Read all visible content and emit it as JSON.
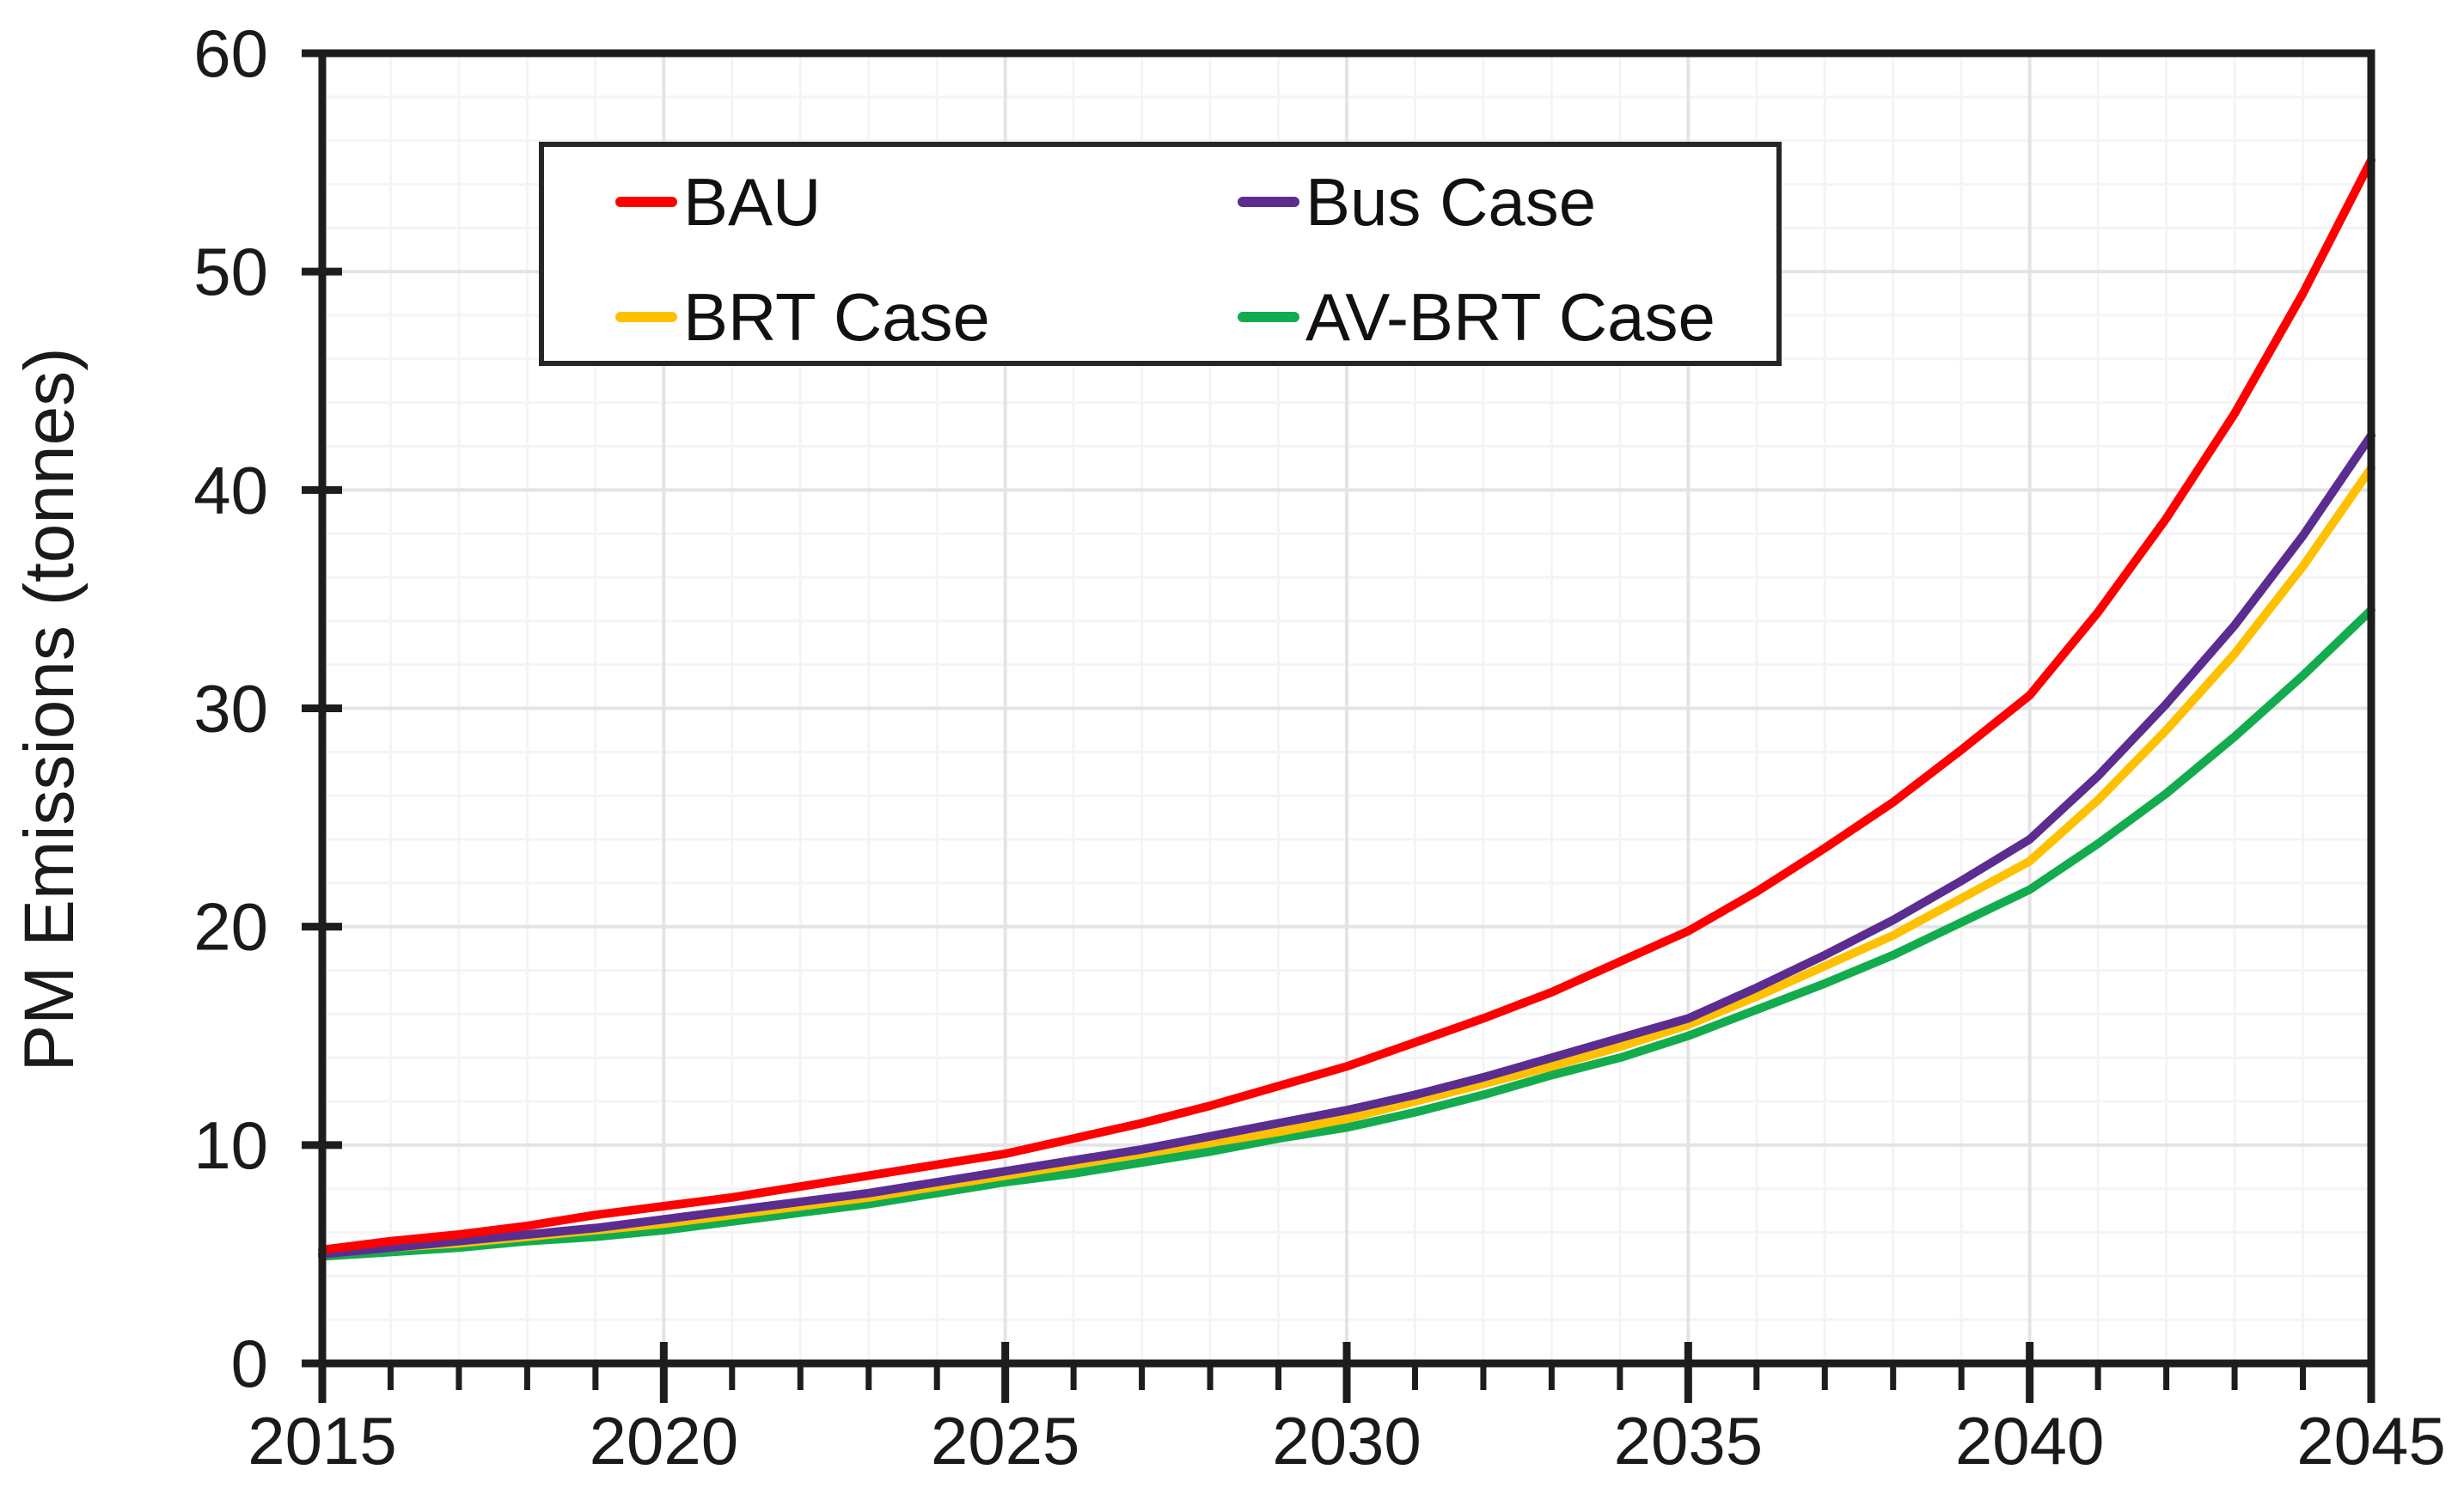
{
  "chart_data": {
    "type": "line",
    "title": "",
    "xlabel": "",
    "ylabel": "PM Emissions (tonnes)",
    "xlim": [
      2015,
      2045
    ],
    "ylim": [
      0,
      60
    ],
    "x_ticks_major": [
      2015,
      2020,
      2025,
      2030,
      2035,
      2040,
      2045
    ],
    "x_minor_step": 1,
    "y_ticks_major": [
      0,
      10,
      20,
      30,
      40,
      50,
      60
    ],
    "y_minor_step": 2,
    "grid": true,
    "legend_position": "inside-top-left",
    "axis_color": "#1d1d1d",
    "grid_major_color": "#e4e4e4",
    "grid_minor_color": "#f4f4f4",
    "x": [
      2015,
      2016,
      2017,
      2018,
      2019,
      2020,
      2021,
      2022,
      2023,
      2024,
      2025,
      2026,
      2027,
      2028,
      2029,
      2030,
      2031,
      2032,
      2033,
      2034,
      2035,
      2036,
      2037,
      2038,
      2039,
      2040,
      2041,
      2042,
      2043,
      2044,
      2045
    ],
    "series": [
      {
        "name": "BAU",
        "color": "#fe0000",
        "values": [
          5.2,
          5.6,
          5.9,
          6.3,
          6.8,
          7.2,
          7.6,
          8.1,
          8.6,
          9.1,
          9.6,
          10.3,
          11.0,
          11.8,
          12.7,
          13.6,
          14.7,
          15.8,
          17.0,
          18.4,
          19.8,
          21.6,
          23.6,
          25.7,
          28.1,
          30.6,
          34.4,
          38.7,
          43.5,
          49.0,
          55.1
        ]
      },
      {
        "name": "Bus Case",
        "color": "#5b2d90",
        "values": [
          5.0,
          5.3,
          5.6,
          5.9,
          6.2,
          6.6,
          7.0,
          7.4,
          7.8,
          8.3,
          8.8,
          9.3,
          9.8,
          10.4,
          11.0,
          11.6,
          12.3,
          13.1,
          14.0,
          14.9,
          15.8,
          17.2,
          18.7,
          20.3,
          22.1,
          24.0,
          26.9,
          30.2,
          33.8,
          37.9,
          42.5
        ]
      },
      {
        "name": "BRT Case",
        "color": "#ffc000",
        "values": [
          5.0,
          5.3,
          5.5,
          5.8,
          6.1,
          6.4,
          6.8,
          7.2,
          7.6,
          8.1,
          8.6,
          9.1,
          9.6,
          10.1,
          10.6,
          11.2,
          12.0,
          12.8,
          13.6,
          14.5,
          15.5,
          16.8,
          18.2,
          19.6,
          21.3,
          23.0,
          25.8,
          29.0,
          32.5,
          36.5,
          41.0
        ]
      },
      {
        "name": "AV-BRT Case",
        "color": "#12ac4e",
        "values": [
          4.9,
          5.1,
          5.3,
          5.6,
          5.8,
          6.1,
          6.5,
          6.9,
          7.3,
          7.8,
          8.3,
          8.7,
          9.2,
          9.7,
          10.3,
          10.8,
          11.5,
          12.3,
          13.2,
          14.0,
          15.0,
          16.2,
          17.4,
          18.7,
          20.2,
          21.7,
          23.8,
          26.1,
          28.7,
          31.5,
          34.5
        ]
      }
    ]
  }
}
